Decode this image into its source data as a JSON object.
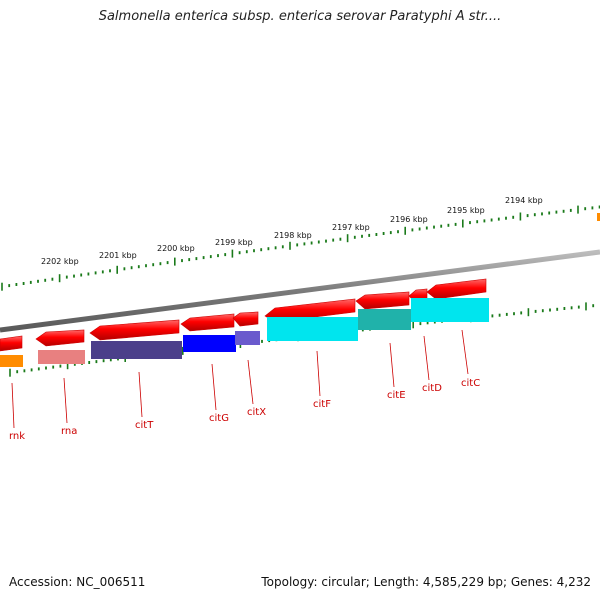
{
  "title": "Salmonella enterica subsp. enterica serovar Paratyphi A str....",
  "footer": {
    "accession": "Accession: NC_006511",
    "info": "Topology: circular; Length: 4,585,229 bp; Genes: 4,232"
  },
  "scale_labels": [
    "2202 kbp",
    "2201 kbp",
    "2200 kbp",
    "2199 kbp",
    "2198 kbp",
    "2197 kbp",
    "2196 kbp",
    "2195 kbp",
    "2194 kbp"
  ],
  "genes": [
    {
      "name": "rnk",
      "color": "#ff0000",
      "track_color": "#ff8c00"
    },
    {
      "name": "rna",
      "color": "#ff0000",
      "track_color": "#e88080"
    },
    {
      "name": "citT",
      "color": "#ff0000",
      "track_color": "#4b3f8a"
    },
    {
      "name": "citG",
      "color": "#ff0000",
      "track_color": "#0000ff"
    },
    {
      "name": "citX",
      "color": "#ff0000",
      "track_color": "#6a5acd"
    },
    {
      "name": "citF",
      "color": "#ff0000",
      "track_color": "#00e5ee"
    },
    {
      "name": "citE",
      "color": "#ff0000",
      "track_color": "#20b2aa"
    },
    {
      "name": "citD",
      "color": "#ff0000",
      "track_color": "#00e5ee"
    },
    {
      "name": "citC",
      "color": "#ff0000",
      "track_color": "#00e5ee"
    }
  ],
  "colors": {
    "backbone": "#808080",
    "tick": "#1a7a1a",
    "gene_forward": "#ff0000",
    "label": "#cc0000"
  }
}
